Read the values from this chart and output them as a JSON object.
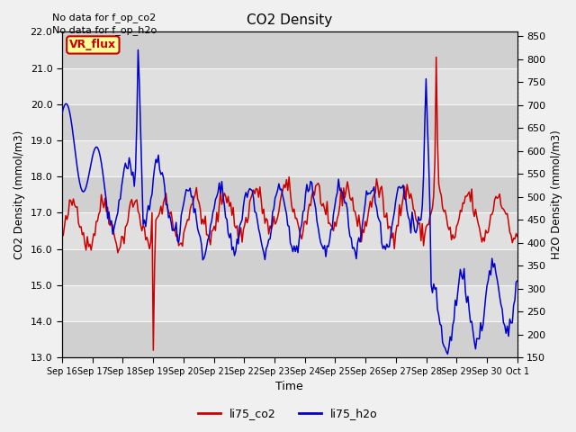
{
  "title": "CO2 Density",
  "xlabel": "Time",
  "ylabel_left": "CO2 Density (mmol/m3)",
  "ylabel_right": "H2O Density (mmol/m3)",
  "ylim_left": [
    13.0,
    22.0
  ],
  "ylim_right": [
    150,
    860
  ],
  "top_text": [
    "No data for f_op_co2",
    "No data for f_op_h2o"
  ],
  "legend_labels": [
    "li75_co2",
    "li75_h2o"
  ],
  "legend_colors": [
    "#cc0000",
    "#0000cc"
  ],
  "vr_flux_label": "VR_flux",
  "vr_flux_bg": "#ffff99",
  "vr_flux_border": "#cc0000",
  "left_yticks": [
    13.0,
    14.0,
    15.0,
    16.0,
    17.0,
    18.0,
    19.0,
    20.0,
    21.0,
    22.0
  ],
  "right_yticks": [
    150,
    200,
    250,
    300,
    350,
    400,
    450,
    500,
    550,
    600,
    650,
    700,
    750,
    800,
    850
  ],
  "xtick_labels": [
    "Sep 16",
    "Sep 17",
    "Sep 18",
    "Sep 19",
    "Sep 20",
    "Sep 21",
    "Sep 22",
    "Sep 23",
    "Sep 24",
    "Sep 25",
    "Sep 26",
    "Sep 27",
    "Sep 28",
    "Sep 29",
    "Sep 30",
    "Oct 1"
  ],
  "n_points": 360
}
